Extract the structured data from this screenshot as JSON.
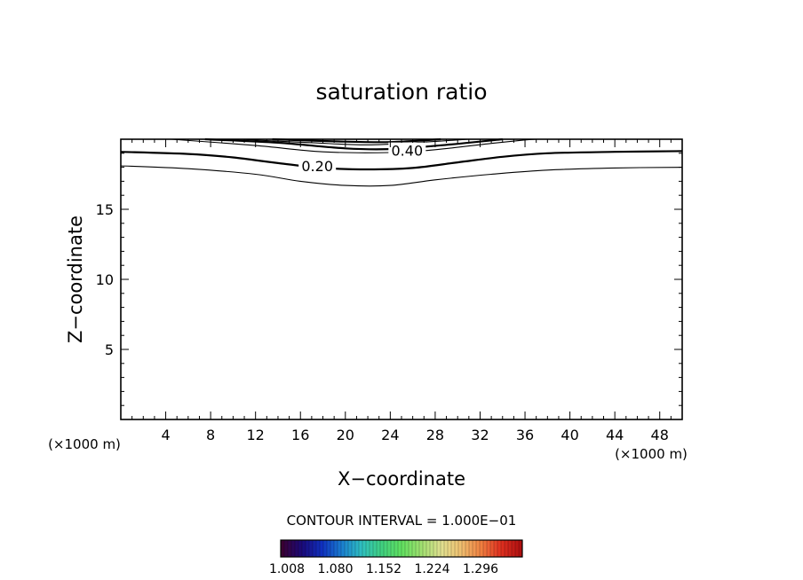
{
  "chart_data": {
    "type": "contour",
    "title": "saturation ratio",
    "xlabel": "X−coordinate",
    "ylabel": "Z−coordinate",
    "x_unit": "(×1000 m)",
    "z_unit": "(×1000 m)",
    "xlim": [
      0,
      50
    ],
    "ylim": [
      0,
      20
    ],
    "x_ticks": [
      4,
      8,
      12,
      16,
      20,
      24,
      28,
      32,
      36,
      40,
      44,
      48
    ],
    "y_ticks": [
      5,
      10,
      15
    ],
    "grid": false,
    "contour_interval_text": "CONTOUR INTERVAL = 1.000E−01",
    "contour_labels": [
      {
        "text": "0.40",
        "x": 25.5,
        "z": 19.2
      },
      {
        "text": "0.20",
        "x": 17.5,
        "z": 18.1
      }
    ],
    "contours": [
      {
        "level": 0.1,
        "points": [
          [
            0,
            18.1
          ],
          [
            6,
            17.9
          ],
          [
            12,
            17.5
          ],
          [
            16,
            17.0
          ],
          [
            20,
            16.7
          ],
          [
            24,
            16.7
          ],
          [
            28,
            17.1
          ],
          [
            33,
            17.5
          ],
          [
            38,
            17.8
          ],
          [
            44,
            17.95
          ],
          [
            50,
            18.0
          ]
        ]
      },
      {
        "level": 0.2,
        "points": [
          [
            0,
            19.1
          ],
          [
            6,
            18.95
          ],
          [
            10,
            18.7
          ],
          [
            14,
            18.3
          ],
          [
            18,
            17.95
          ],
          [
            22,
            17.85
          ],
          [
            26,
            17.95
          ],
          [
            30,
            18.35
          ],
          [
            34,
            18.75
          ],
          [
            38,
            19.0
          ],
          [
            44,
            19.1
          ],
          [
            50,
            19.15
          ]
        ]
      },
      {
        "level": 0.3,
        "points": [
          [
            4.5,
            20.0
          ],
          [
            12,
            19.55
          ],
          [
            18,
            19.1
          ],
          [
            24,
            19.05
          ],
          [
            28,
            19.25
          ],
          [
            33,
            19.7
          ],
          [
            36,
            19.95
          ],
          [
            37,
            20.0
          ]
        ]
      },
      {
        "level": 0.4,
        "points": [
          [
            7.5,
            20.0
          ],
          [
            14,
            19.75
          ],
          [
            20,
            19.35
          ],
          [
            24,
            19.3
          ],
          [
            29,
            19.6
          ],
          [
            34,
            20.0
          ]
        ]
      },
      {
        "level": 0.5,
        "points": [
          [
            10.5,
            20.0
          ],
          [
            17,
            19.75
          ],
          [
            22,
            19.6
          ],
          [
            27,
            19.8
          ],
          [
            31,
            20.0
          ]
        ]
      },
      {
        "level": 0.6,
        "points": [
          [
            13.5,
            20.0
          ],
          [
            19,
            19.85
          ],
          [
            24,
            19.8
          ],
          [
            28.5,
            20.0
          ]
        ]
      }
    ],
    "colorbar": {
      "ticks": [
        "1.008",
        "1.080",
        "1.152",
        "1.224",
        "1.296"
      ],
      "colors": [
        "#3a0034",
        "#1a0a7a",
        "#1030c0",
        "#1a7fd0",
        "#2fc0c0",
        "#40d080",
        "#60e060",
        "#a0e070",
        "#e0e090",
        "#f0c070",
        "#f08040",
        "#e03020",
        "#b01010"
      ]
    }
  }
}
